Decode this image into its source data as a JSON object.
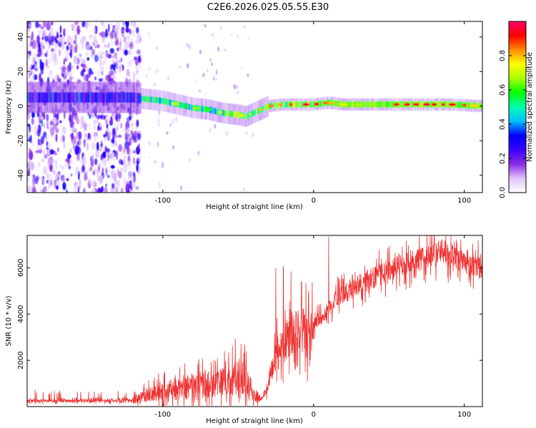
{
  "chart_data": [
    {
      "id": "spectrogram",
      "type": "heatmap",
      "title": "C2E6.2026.025.05.55.E30",
      "xlabel": "Height of straight line (km)",
      "ylabel": "Frequency (Hz)",
      "xlim": [
        -190,
        112
      ],
      "ylim": [
        -50,
        49
      ],
      "xticks": [
        -100,
        0,
        100
      ],
      "xtick_labels": [
        "-100",
        "0",
        "100"
      ],
      "yticks": [
        -40,
        -20,
        0,
        20,
        40
      ],
      "ytick_labels": [
        "-40",
        "-20",
        "0",
        "20",
        "40"
      ],
      "noise_region_end_km": -115,
      "ridge": {
        "x": [
          -120,
          -110,
          -100,
          -90,
          -80,
          -70,
          -60,
          -50,
          -45,
          -40,
          -35,
          -30,
          -20,
          -10,
          0,
          10,
          20,
          30,
          50,
          70,
          90,
          112
        ],
        "y": [
          5,
          4,
          3,
          1,
          -1,
          -2,
          -4,
          -5,
          -6,
          -4,
          -2,
          0,
          1,
          1,
          1,
          2,
          1,
          1,
          1,
          1,
          1,
          0
        ]
      },
      "colorbar": {
        "label": "Normalized spectral amplitude",
        "range": [
          0,
          1
        ],
        "ticks": [
          0.0,
          0.2,
          0.4,
          0.6,
          0.8
        ],
        "tick_labels": [
          "0.0",
          "0.2",
          "0.4",
          "0.6",
          "0.8"
        ],
        "colormap": [
          "#ffffff",
          "#e0c4ff",
          "#8a2be2",
          "#3a00ff",
          "#0000ff",
          "#00bfff",
          "#00ffb0",
          "#00ff00",
          "#a8ff00",
          "#ffff00",
          "#ff8c00",
          "#ff0000",
          "#ff0066"
        ]
      }
    },
    {
      "id": "snr",
      "type": "line",
      "xlabel": "Height of straight line (km)",
      "ylabel": "SNR (10 * v/v)",
      "xlim": [
        -190,
        112
      ],
      "ylim": [
        0,
        7400
      ],
      "xticks": [
        -100,
        0,
        100
      ],
      "xtick_labels": [
        "-100",
        "0",
        "100"
      ],
      "yticks": [
        2000,
        4000,
        6000
      ],
      "ytick_labels": [
        "2000",
        "4000",
        "6000"
      ],
      "color": "#ee3333",
      "trend": {
        "x": [
          -190,
          -150,
          -120,
          -100,
          -90,
          -80,
          -70,
          -60,
          -50,
          -45,
          -40,
          -35,
          -30,
          -25,
          -20,
          -15,
          -10,
          -5,
          0,
          5,
          10,
          15,
          20,
          25,
          30,
          40,
          50,
          60,
          70,
          80,
          85,
          90,
          100,
          112
        ],
        "y": [
          250,
          250,
          280,
          650,
          750,
          850,
          1000,
          1150,
          1300,
          1200,
          600,
          300,
          900,
          2200,
          2600,
          3000,
          3300,
          3200,
          3600,
          3800,
          4200,
          4700,
          4900,
          5000,
          5300,
          5600,
          5900,
          6200,
          6400,
          6500,
          6800,
          6550,
          6200,
          6000
        ]
      },
      "spikes": {
        "x": [
          -25,
          -20,
          -15,
          -8,
          10,
          45,
          80
        ],
        "y": [
          6000,
          6050,
          5850,
          5400,
          7350,
          6400,
          7400
        ]
      }
    }
  ]
}
